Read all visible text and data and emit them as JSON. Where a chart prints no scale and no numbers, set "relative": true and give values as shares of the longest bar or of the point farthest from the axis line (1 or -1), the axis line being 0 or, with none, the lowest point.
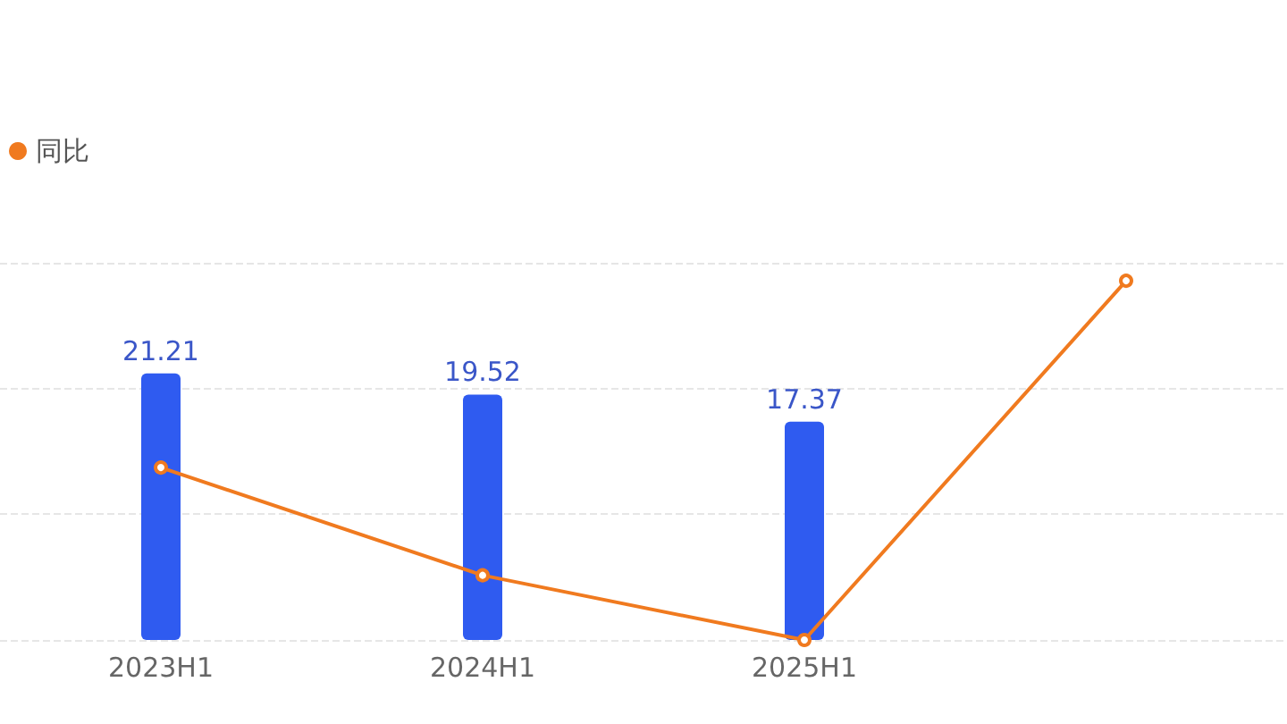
{
  "chart_data": [
    {
      "type": "bar",
      "categories": [
        "2023H1",
        "2024H1",
        "2025H1",
        null
      ],
      "series": [
        {
          "color": "#2f5bf0",
          "values": [
            21.21,
            19.52,
            17.37,
            null
          ]
        }
      ],
      "data_labels": true,
      "ylim": [
        0,
        30
      ],
      "yticks": [
        {
          "value": 0,
          "label": null
        },
        {
          "value": 10,
          "label": null
        },
        {
          "value": 20,
          "label": null
        },
        {
          "value": 30,
          "label": null
        }
      ],
      "tick_labels": "x",
      "grid": "y"
    },
    {
      "type": "line",
      "categories": [
        null,
        null,
        null,
        null
      ],
      "series": [
        {
          "name": "同比",
          "color": "#f07a1f",
          "values": [
            0.48,
            0.18,
            0,
            1
          ]
        }
      ],
      "relative": true,
      "tick_labels": false,
      "legend": "top left",
      "marker": "circle",
      "line_style": "solid"
    }
  ]
}
